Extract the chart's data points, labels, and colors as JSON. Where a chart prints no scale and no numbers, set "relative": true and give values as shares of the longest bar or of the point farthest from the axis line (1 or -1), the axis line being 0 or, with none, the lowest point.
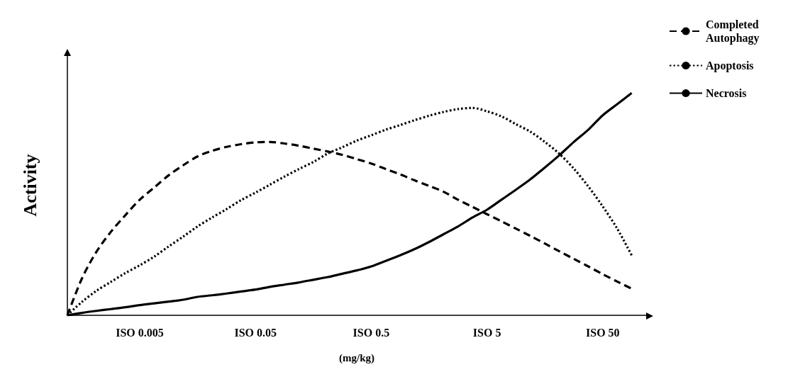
{
  "chart_data": {
    "type": "line",
    "relative": true,
    "ylabel": "Activity",
    "xlabel": "(mg/kg)",
    "categories": [
      null,
      null,
      null,
      null,
      null,
      "ISO 0.005",
      null,
      null,
      null,
      null,
      null,
      null,
      null,
      "ISO 0.05",
      null,
      null,
      null,
      null,
      null,
      null,
      null,
      "ISO 0.5",
      null,
      null,
      null,
      null,
      null,
      null,
      null,
      "ISO 5",
      null,
      null,
      null,
      null,
      null,
      null,
      null,
      "ISO 50",
      null,
      null,
      null
    ],
    "legend": "top right",
    "grid": false,
    "marker": "none",
    "series": [
      {
        "name": "Completed Autophagy",
        "color": "#000000",
        "line_style": "dashed",
        "values": [
          0,
          0.165,
          0.285,
          0.375,
          0.45,
          0.52,
          0.575,
          0.63,
          0.675,
          0.715,
          0.74,
          0.758,
          0.77,
          0.778,
          0.78,
          0.773,
          0.763,
          0.75,
          0.737,
          0.722,
          0.703,
          0.683,
          0.658,
          0.634,
          0.607,
          0.582,
          0.556,
          0.52,
          0.488,
          0.455,
          0.423,
          0.39,
          0.357,
          0.323,
          0.288,
          0.254,
          0.22,
          0.185,
          0.152,
          0.12,
          null
        ]
      },
      {
        "name": "Apoptosis",
        "color": "#000000",
        "line_style": "dotted",
        "values": [
          0,
          0.06,
          0.11,
          0.15,
          0.19,
          0.225,
          0.264,
          0.31,
          0.354,
          0.4,
          0.44,
          0.478,
          0.518,
          0.552,
          0.588,
          0.624,
          0.658,
          0.69,
          0.728,
          0.756,
          0.786,
          0.81,
          0.835,
          0.856,
          0.878,
          0.898,
          0.915,
          0.928,
          0.933,
          0.918,
          0.895,
          0.86,
          0.826,
          0.78,
          0.727,
          0.66,
          0.58,
          0.49,
          0.39,
          0.27,
          null
        ]
      },
      {
        "name": "Necrosis",
        "color": "#000000",
        "line_style": "solid",
        "values": [
          0,
          0.011,
          0.02,
          0.028,
          0.036,
          0.046,
          0.054,
          0.062,
          0.07,
          0.083,
          0.09,
          0.098,
          0.107,
          0.116,
          0.128,
          0.138,
          0.148,
          0.16,
          0.172,
          0.187,
          0.202,
          0.22,
          0.245,
          0.27,
          0.298,
          0.33,
          0.365,
          0.4,
          0.44,
          0.475,
          0.52,
          0.565,
          0.612,
          0.665,
          0.72,
          0.78,
          0.835,
          0.9,
          0.95,
          1,
          null
        ]
      }
    ]
  }
}
